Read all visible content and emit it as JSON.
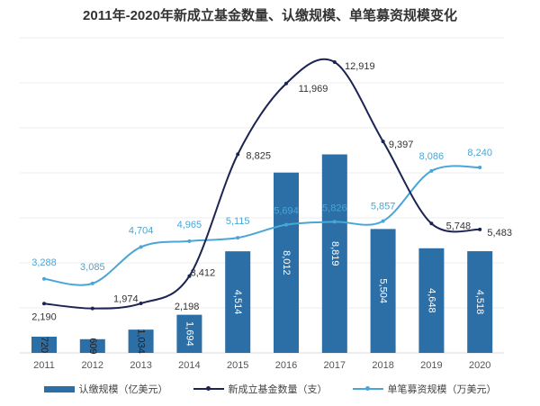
{
  "chart_data": {
    "type": "bar+line",
    "title": "2011年-2020年新成立基金数量、认缴规模、单笔募资规模变化",
    "categories": [
      "2011",
      "2012",
      "2013",
      "2014",
      "2015",
      "2016",
      "2017",
      "2018",
      "2019",
      "2020"
    ],
    "ylim": [
      0,
      14000
    ],
    "grid": true,
    "legend_position": "bottom",
    "series": [
      {
        "name": "认缴规模（亿美元）",
        "type": "bar",
        "color": "#2c6ea6",
        "values": [
          720,
          609,
          1034,
          1694,
          4514,
          8012,
          8819,
          5504,
          4648,
          4518
        ],
        "labels": [
          "720",
          "609",
          "1,034",
          "1,694",
          "4,514",
          "8,012",
          "8,819",
          "5,504",
          "4,648",
          "4,518"
        ]
      },
      {
        "name": "新成立基金数量（支）",
        "type": "line",
        "color": "#1b2452",
        "values": [
          2190,
          1974,
          2198,
          3412,
          8825,
          11969,
          12919,
          9397,
          5748,
          5483
        ],
        "labels": [
          "2,190",
          "1,974",
          "2,198",
          "3,412",
          "8,825",
          "11,969",
          "12,919",
          "9,397",
          "5,748",
          "5,483"
        ]
      },
      {
        "name": "单笔募资规模（万美元）",
        "type": "line",
        "color": "#4aa6d6",
        "values": [
          3288,
          3085,
          4704,
          4965,
          5115,
          5694,
          5826,
          5857,
          8086,
          8240
        ],
        "labels": [
          "3,288",
          "3,085",
          "4,704",
          "4,965",
          "5,115",
          "5,694",
          "5,826",
          "5,857",
          "8,086",
          "8,240"
        ]
      }
    ]
  }
}
